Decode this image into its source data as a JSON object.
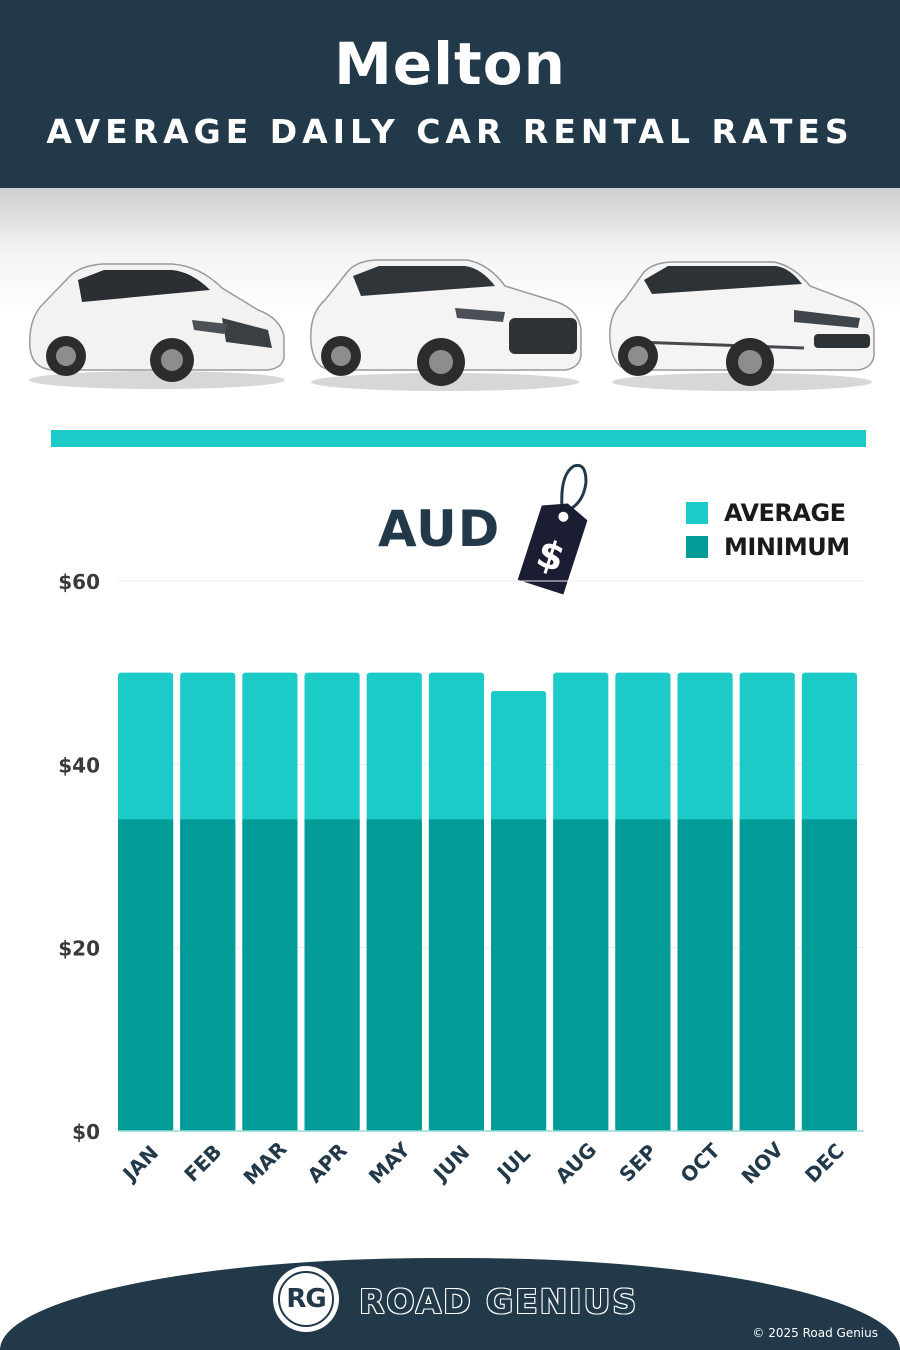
{
  "header": {
    "city": "Melton",
    "subtitle": "AVERAGE DAILY CAR RENTAL RATES"
  },
  "currency_label": "AUD",
  "price_tag_symbol": "$",
  "colors": {
    "header_bg": "#22394a",
    "average": "#1ccbc7",
    "minimum": "#029c98",
    "accent_rule": "#1ccbc7"
  },
  "chart_data": {
    "type": "bar",
    "categories": [
      "JAN",
      "FEB",
      "MAR",
      "APR",
      "MAY",
      "JUN",
      "JUL",
      "AUG",
      "SEP",
      "OCT",
      "NOV",
      "DEC"
    ],
    "series": [
      {
        "name": "AVERAGE",
        "values": [
          50,
          50,
          50,
          50,
          50,
          50,
          48,
          50,
          50,
          50,
          50,
          50
        ]
      },
      {
        "name": "MINIMUM",
        "values": [
          34,
          34,
          34,
          34,
          34,
          34,
          34,
          34,
          34,
          34,
          34,
          34
        ]
      }
    ],
    "y_ticks": [
      "$0",
      "$20",
      "$40",
      "$60"
    ],
    "ylim": [
      0,
      60
    ],
    "grid": true,
    "legend_position": "top-right",
    "overlay": true
  },
  "footer": {
    "logo_mark": "RG",
    "brand": "ROAD GENIUS",
    "copyright": "© 2025 Road Genius"
  }
}
